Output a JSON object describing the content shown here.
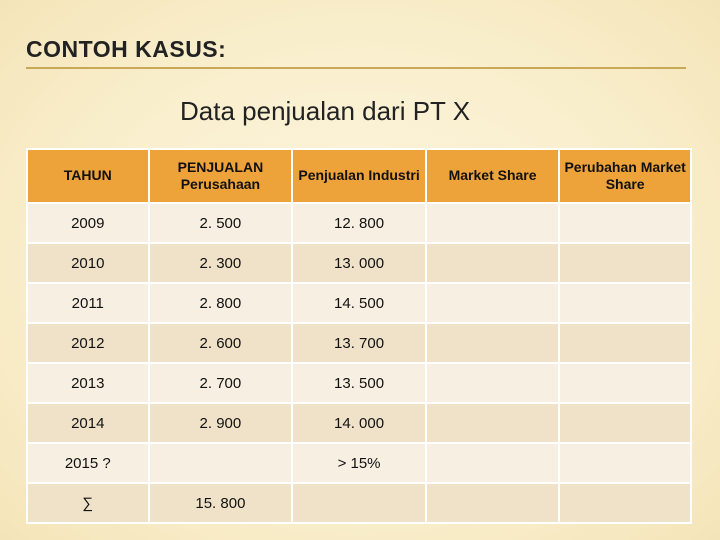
{
  "title": "CONTOH KASUS:",
  "subtitle": "Data penjualan dari PT X",
  "table": {
    "columns": [
      {
        "key": "tahun",
        "label": "TAHUN",
        "class": "col-tahun"
      },
      {
        "key": "company",
        "label": "PENJUALAN Perusahaan",
        "class": "col-company"
      },
      {
        "key": "industry",
        "label": "Penjualan Industri",
        "class": "col-industry"
      },
      {
        "key": "market",
        "label": "Market Share",
        "class": "col-market"
      },
      {
        "key": "change",
        "label": "Perubahan Market Share",
        "class": "col-change"
      }
    ],
    "rows": [
      {
        "tahun": "2009",
        "company": "2. 500",
        "industry": "12. 800",
        "market": "",
        "change": ""
      },
      {
        "tahun": "2010",
        "company": "2. 300",
        "industry": "13. 000",
        "market": "",
        "change": ""
      },
      {
        "tahun": "2011",
        "company": "2. 800",
        "industry": "14. 500",
        "market": "",
        "change": ""
      },
      {
        "tahun": "2012",
        "company": "2. 600",
        "industry": "13. 700",
        "market": "",
        "change": ""
      },
      {
        "tahun": "2013",
        "company": "2. 700",
        "industry": "13. 500",
        "market": "",
        "change": ""
      },
      {
        "tahun": "2014",
        "company": "2. 900",
        "industry": "14. 000",
        "market": "",
        "change": ""
      },
      {
        "tahun": "2015   ?",
        "company": "",
        "industry": "> 15%",
        "market": "",
        "change": ""
      },
      {
        "tahun": "∑",
        "company": "15. 800",
        "industry": "",
        "market": "",
        "change": ""
      }
    ],
    "header_bg": "#eea23a",
    "row_odd_bg": "#f7efe1",
    "row_even_bg": "#efe2c9",
    "border_color": "#ffffff",
    "font_family": "Arial"
  }
}
